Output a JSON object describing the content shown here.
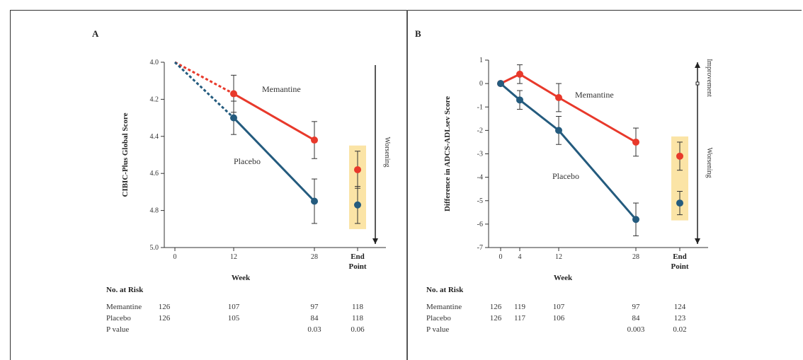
{
  "chart_data": [
    {
      "panel_label": "A",
      "type": "line",
      "ylabel": "CIBIC-Plus Global Score",
      "xlabel": "Week",
      "x_ticks": [
        "0",
        "12",
        "28",
        "End Point"
      ],
      "y_ticks": [
        "4.0",
        "4.2",
        "4.4",
        "4.6",
        "4.8",
        "5.0"
      ],
      "ylim": [
        5.0,
        4.0
      ],
      "arrow_label": "Worsening",
      "series": [
        {
          "name": "Memantine",
          "color": "#e8392b",
          "points": [
            {
              "x": 0,
              "y": 4.0
            },
            {
              "x": 12,
              "y": 4.17
            },
            {
              "x": 28,
              "y": 4.42
            }
          ],
          "err": [
            0,
            0.1,
            0.1
          ],
          "endpoint": {
            "y": 4.58,
            "err": 0.1
          }
        },
        {
          "name": "Placebo",
          "color": "#245b7e",
          "points": [
            {
              "x": 0,
              "y": 4.0
            },
            {
              "x": 12,
              "y": 4.3
            },
            {
              "x": 28,
              "y": 4.75
            }
          ],
          "err": [
            0,
            0.09,
            0.12
          ],
          "endpoint": {
            "y": 4.77,
            "err": 0.1
          }
        }
      ],
      "table": {
        "title": "No. at Risk",
        "rows": [
          {
            "label": "Memantine",
            "values": [
              "126",
              "107",
              "97",
              "118"
            ]
          },
          {
            "label": "Placebo",
            "values": [
              "126",
              "105",
              "84",
              "118"
            ]
          },
          {
            "label": "P value",
            "values": [
              "",
              "",
              "0.03",
              "0.06"
            ]
          }
        ]
      }
    },
    {
      "panel_label": "B",
      "type": "line",
      "ylabel": "Difference in ADCS-ADLsev Score",
      "xlabel": "Week",
      "x_ticks": [
        "0",
        "4",
        "12",
        "28",
        "End Point"
      ],
      "y_ticks": [
        "1",
        "0",
        "-1",
        "-2",
        "-3",
        "-4",
        "-5",
        "-6",
        "-7"
      ],
      "ylim": [
        -7,
        1
      ],
      "arrow_up_label": "Improvement",
      "arrow_down_label": "Worsening",
      "series": [
        {
          "name": "Memantine",
          "color": "#e8392b",
          "points": [
            {
              "x": 0,
              "y": 0
            },
            {
              "x": 4,
              "y": 0.4
            },
            {
              "x": 12,
              "y": -0.6
            },
            {
              "x": 28,
              "y": -2.5
            }
          ],
          "err": [
            0,
            0.4,
            0.6,
            0.6
          ],
          "endpoint": {
            "y": -3.1,
            "err": 0.6
          }
        },
        {
          "name": "Placebo",
          "color": "#245b7e",
          "points": [
            {
              "x": 0,
              "y": 0
            },
            {
              "x": 4,
              "y": -0.7
            },
            {
              "x": 12,
              "y": -2.0
            },
            {
              "x": 28,
              "y": -5.8
            }
          ],
          "err": [
            0,
            0.4,
            0.6,
            0.7
          ],
          "endpoint": {
            "y": -5.1,
            "err": 0.5
          }
        }
      ],
      "table": {
        "title": "No. at Risk",
        "rows": [
          {
            "label": "Memantine",
            "values": [
              "126",
              "119",
              "107",
              "97",
              "124"
            ]
          },
          {
            "label": "Placebo",
            "values": [
              "126",
              "117",
              "106",
              "84",
              "123"
            ]
          },
          {
            "label": "P value",
            "values": [
              "",
              "",
              "",
              "0.003",
              "0.02"
            ]
          }
        ]
      }
    }
  ]
}
